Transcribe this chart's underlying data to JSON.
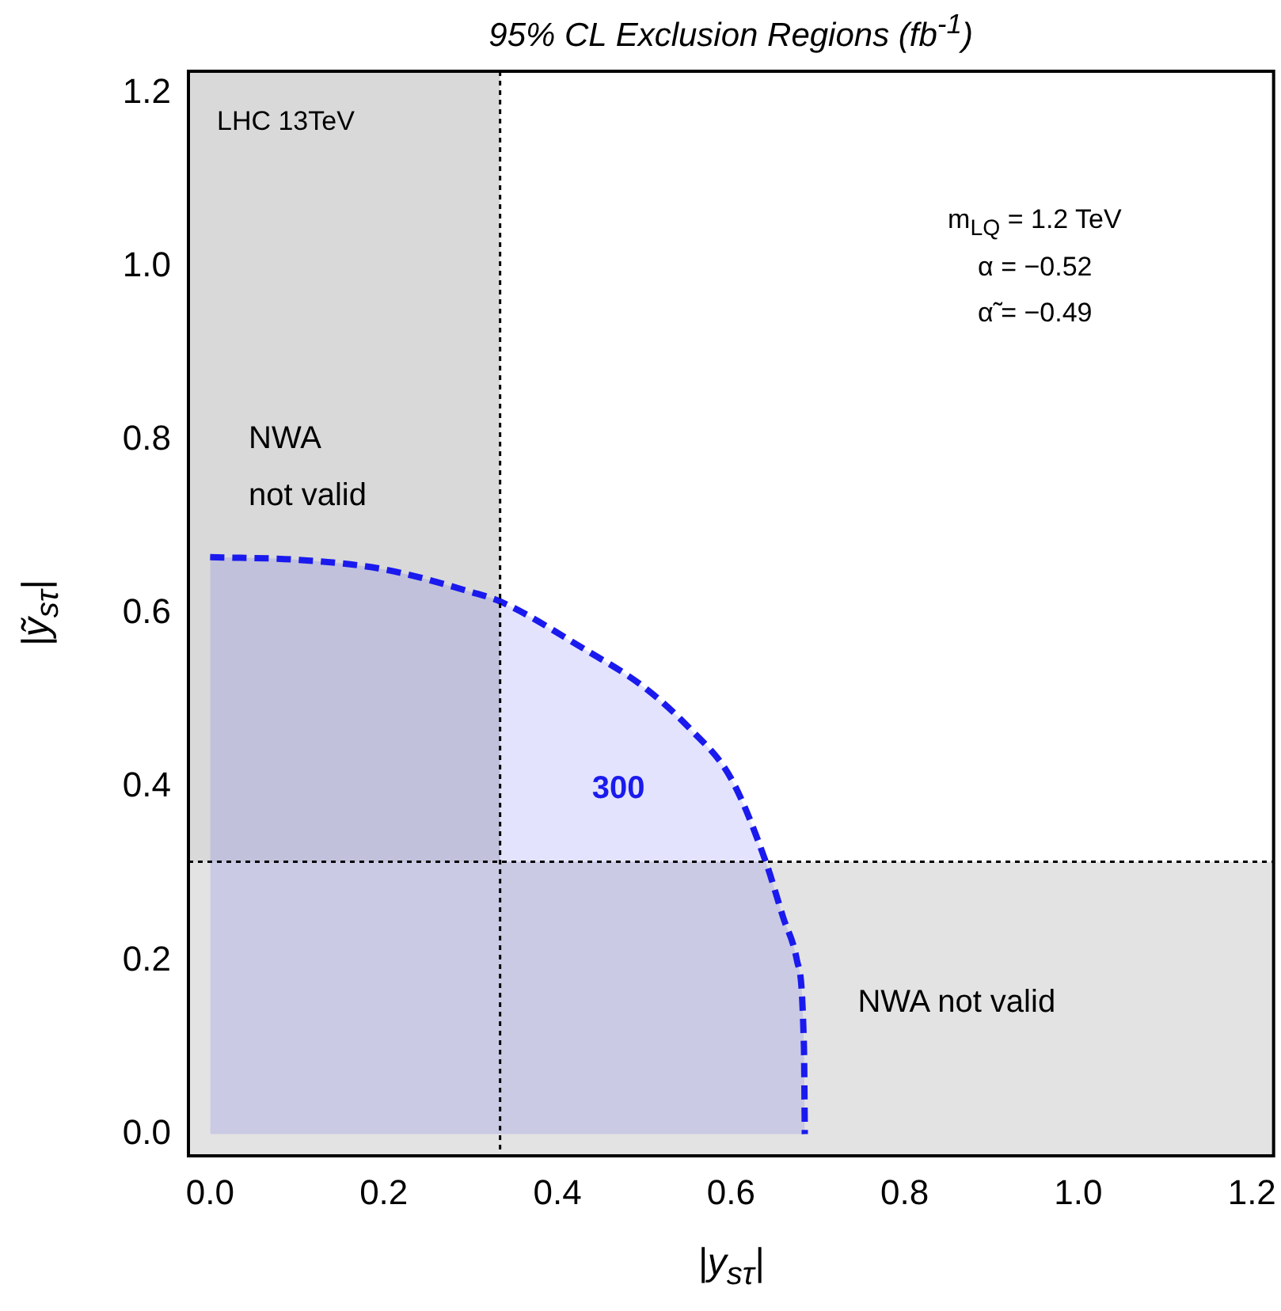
{
  "chart_data": {
    "type": "area",
    "title": "95% CL Exclusion Regions (fb$^{-1}$)",
    "xlabel": "|y$_{sτ}$|",
    "ylabel": "|ỹ$_{sτ}$|",
    "x": [
      0,
      0.1,
      0.2,
      0.3,
      0.334,
      0.431,
      0.5,
      0.553,
      0.6,
      0.64,
      0.66,
      0.676,
      0.684,
      0.685
    ],
    "series": [
      {
        "name": "300",
        "color": "#1a1aee",
        "values": [
          0.665,
          0.662,
          0.651,
          0.625,
          0.614,
          0.559,
          0.515,
          0.467,
          0.41,
          0.314,
          0.25,
          0.2,
          0.1,
          0
        ]
      }
    ],
    "line_style": "dashed",
    "marker": "none",
    "xlim": [
      -0.025,
      1.225
    ],
    "ylim": [
      -0.025,
      1.225
    ],
    "xticks": [
      {
        "value": 0,
        "label": "0.0"
      },
      {
        "value": 0.2,
        "label": "0.2"
      },
      {
        "value": 0.4,
        "label": "0.4"
      },
      {
        "value": 0.6,
        "label": "0.6"
      },
      {
        "value": 0.8,
        "label": "0.8"
      },
      {
        "value": 1,
        "label": "1.0"
      },
      {
        "value": 1.2,
        "label": "1.2"
      }
    ],
    "yticks": [
      {
        "value": 0,
        "label": "0.0"
      },
      {
        "value": 0.2,
        "label": "0.2"
      },
      {
        "value": 0.4,
        "label": "0.4"
      },
      {
        "value": 0.6,
        "label": "0.6"
      },
      {
        "value": 0.8,
        "label": "0.8"
      },
      {
        "value": 1,
        "label": "1.0"
      },
      {
        "value": 1.2,
        "label": "1.2"
      }
    ],
    "bands": [
      {
        "axis": "x",
        "from": -0.025,
        "to": 0.334,
        "label": "NWA\nnot valid",
        "color": "#d9d9d9"
      },
      {
        "axis": "y",
        "from": -0.025,
        "to": 0.314,
        "label": "NWA not valid",
        "color": "#e3e3e3"
      }
    ],
    "ref_lines": [
      {
        "axis": "x",
        "value": 0.334,
        "line_style": "dotted",
        "color": "#000000"
      },
      {
        "axis": "y",
        "value": 0.314,
        "line_style": "dotted",
        "color": "#000000"
      }
    ],
    "annotations": [
      "LHC 13TeV",
      "m$_{LQ}$ = 1.2 TeV",
      "α = −0.52",
      "α̃ = −0.49"
    ],
    "grid": false,
    "legend": false
  }
}
